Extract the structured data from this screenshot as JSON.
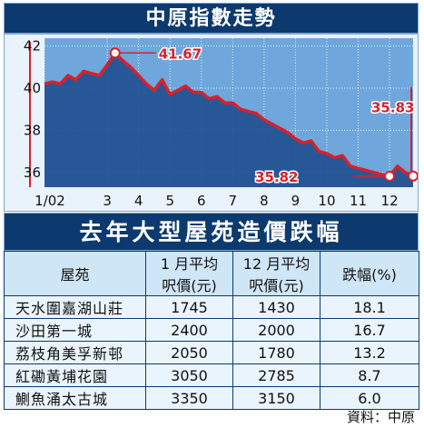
{
  "header_title": "中原指數走勢",
  "table_title": "去年大型屋苑造價跌幅",
  "chart_data": {
    "type": "line",
    "ylim": [
      35.3,
      42.2
    ],
    "y_ticks": [
      36,
      38,
      40,
      42
    ],
    "x_tick_labels": [
      "1/02",
      "3",
      "4",
      "5",
      "6",
      "7",
      "8",
      "9",
      "10",
      "11",
      "12"
    ],
    "x_tick_weeks": [
      1,
      9,
      13,
      17,
      21,
      25,
      29,
      33,
      37,
      41,
      45
    ],
    "series": [
      {
        "weeks": [
          1,
          2,
          3,
          4,
          5,
          6,
          7,
          8,
          9,
          10,
          11,
          12,
          13,
          14,
          15,
          16,
          17,
          18,
          19,
          20,
          21,
          22,
          23,
          24,
          25,
          26,
          27,
          28,
          29,
          30,
          31,
          32,
          33,
          34,
          35,
          36,
          37,
          38,
          39,
          40,
          41,
          42,
          43,
          44,
          45,
          46,
          47,
          48
        ],
        "values": [
          40.2,
          40.3,
          40.2,
          40.6,
          40.4,
          40.8,
          40.7,
          40.6,
          41.1,
          41.67,
          41.3,
          41.0,
          40.6,
          40.2,
          39.9,
          40.4,
          39.7,
          39.9,
          40.1,
          39.8,
          39.8,
          39.5,
          39.6,
          39.3,
          39.3,
          39.0,
          38.9,
          38.8,
          38.5,
          38.3,
          38.1,
          37.9,
          37.6,
          37.4,
          37.5,
          37.0,
          36.9,
          36.7,
          36.8,
          36.3,
          36.2,
          36.1,
          36.0,
          35.9,
          35.82,
          36.3,
          36.0,
          35.83
        ]
      }
    ],
    "annotations": [
      {
        "label": "41.67",
        "week": 10,
        "value": 41.67,
        "position": "right"
      },
      {
        "label": "35.82",
        "week": 45,
        "value": 35.82,
        "position": "left"
      },
      {
        "label": "35.83",
        "week": 48,
        "value": 35.83,
        "position": "above"
      }
    ]
  },
  "table": {
    "headers": [
      "屋苑",
      "1 月平均\n呎價(元)",
      "12 月平均\n呎價(元)",
      "跌幅(%)"
    ],
    "rows": [
      [
        "天水圍嘉湖山莊",
        "1745",
        "1430",
        "18.1"
      ],
      [
        "沙田第一城",
        "2400",
        "2000",
        "16.7"
      ],
      [
        "荔枝角美孚新邨",
        "2050",
        "1780",
        "13.2"
      ],
      [
        "紅磡黃埔花園",
        "3050",
        "2785",
        "8.7"
      ],
      [
        "鰂魚涌太古城",
        "3350",
        "3150",
        "6.0"
      ]
    ]
  },
  "source": "資料：中原",
  "colors": {
    "banner": "#0d3a6e",
    "line": "#d8202a",
    "area": "#1f4f8f",
    "panel": "#e9f3fb"
  }
}
